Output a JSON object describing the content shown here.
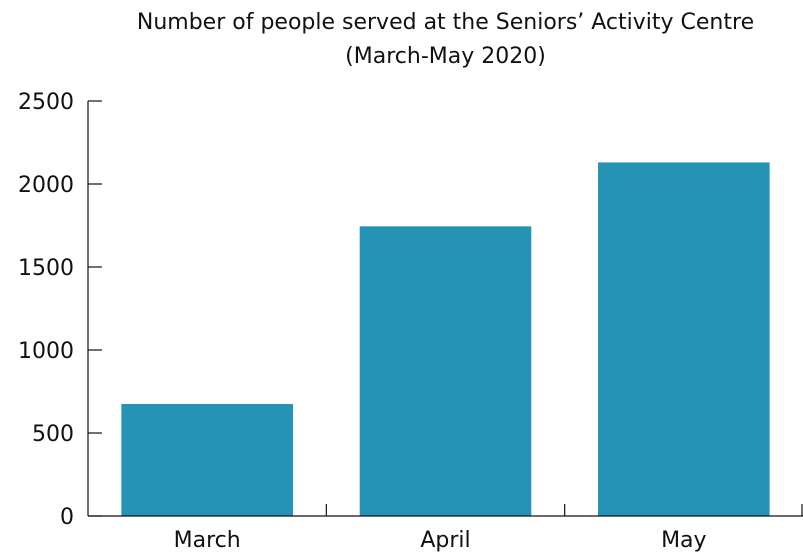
{
  "chart_data": {
    "type": "bar",
    "title": "Number of people served at the Seniors’ Activity Centre",
    "subtitle": "(March-May 2020)",
    "xlabel": "",
    "ylabel": "",
    "categories": [
      "March",
      "April",
      "May"
    ],
    "values": [
      675,
      1745,
      2130
    ],
    "ylim": [
      0,
      2500
    ],
    "yticks": [
      0,
      500,
      1000,
      1500,
      2000,
      2500
    ],
    "grid": false,
    "bar_color": "#2593b5"
  }
}
